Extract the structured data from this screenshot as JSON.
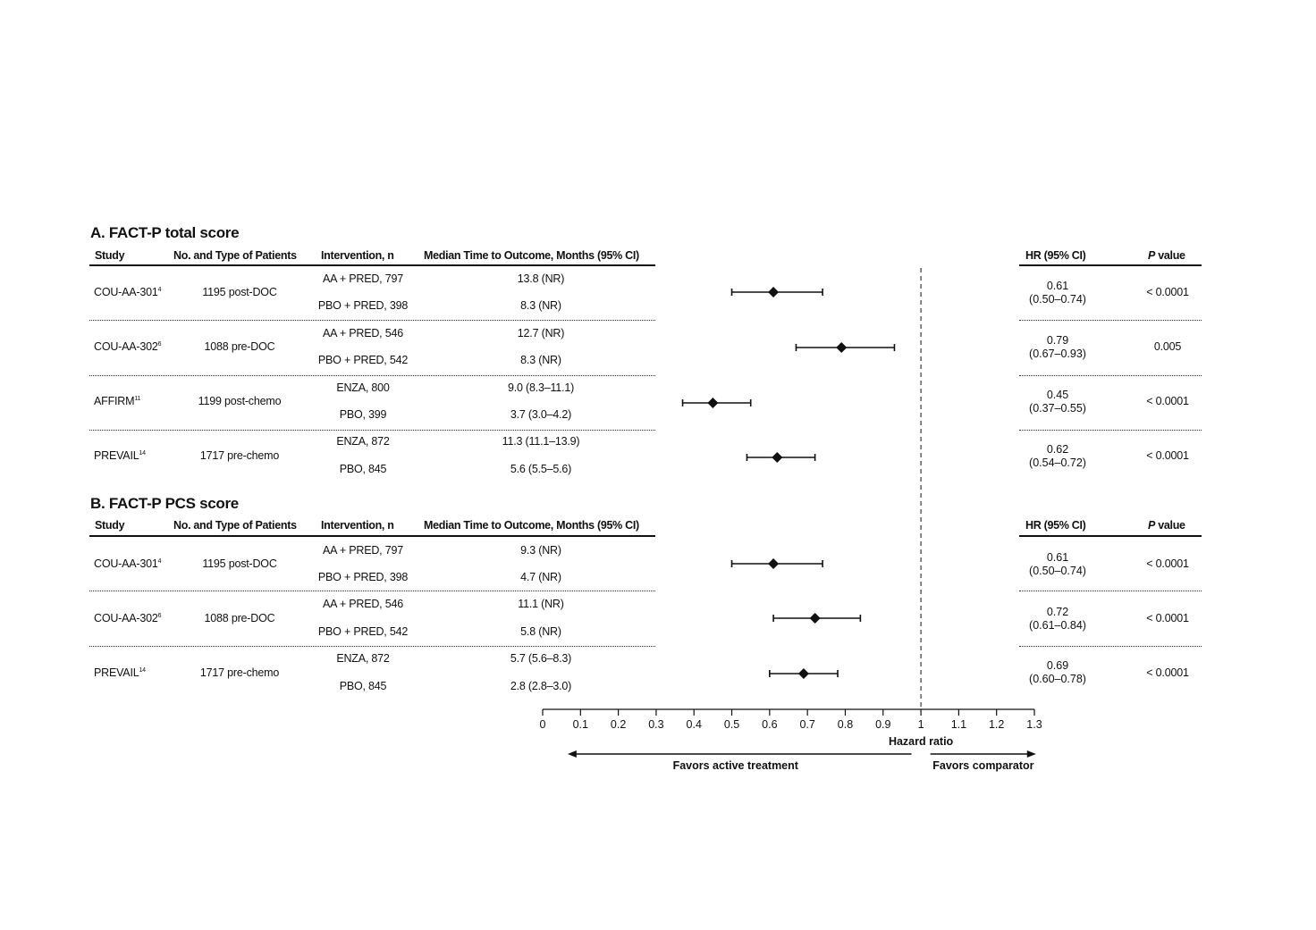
{
  "panels": [
    {
      "title": "A. FACT-P total score",
      "headers": {
        "study": "Study",
        "patients": "No. and Type of Patients",
        "intervention": "Intervention, n",
        "median": "Median Time to Outcome, Months (95% CI)",
        "hr": "HR (95% CI)",
        "p_italic": "P",
        "p_rest": " value"
      },
      "rows": [
        {
          "study": "COU-AA-301",
          "ref": "4",
          "patients": "1195 post-DOC",
          "arm1": "AA + PRED, 797",
          "med1": "13.8 (NR)",
          "arm2": "PBO + PRED, 398",
          "med2": "8.3 (NR)",
          "hr_value": "0.61",
          "hr_ci": "(0.50–0.74)",
          "p": "< 0.0001"
        },
        {
          "study": "COU-AA-302",
          "ref": "6",
          "patients": "1088 pre-DOC",
          "arm1": "AA + PRED, 546",
          "med1": "12.7 (NR)",
          "arm2": "PBO + PRED, 542",
          "med2": "8.3 (NR)",
          "hr_value": "0.79",
          "hr_ci": "(0.67–0.93)",
          "p": "0.005"
        },
        {
          "study": "AFFIRM",
          "ref": "11",
          "patients": "1199 post-chemo",
          "arm1": "ENZA, 800",
          "med1": "9.0 (8.3–11.1)",
          "arm2": "PBO, 399",
          "med2": "3.7 (3.0–4.2)",
          "hr_value": "0.45",
          "hr_ci": "(0.37–0.55)",
          "p": "< 0.0001"
        },
        {
          "study": "PREVAIL",
          "ref": "14",
          "patients": "1717 pre-chemo",
          "arm1": "ENZA, 872",
          "med1": "11.3 (11.1–13.9)",
          "arm2": "PBO, 845",
          "med2": "5.6 (5.5–5.6)",
          "hr_value": "0.62",
          "hr_ci": "(0.54–0.72)",
          "p": "< 0.0001"
        }
      ]
    },
    {
      "title": "B. FACT-P PCS score",
      "headers": {
        "study": "Study",
        "patients": "No. and Type of Patients",
        "intervention": "Intervention, n",
        "median": "Median Time to Outcome, Months (95% CI)",
        "hr": "HR (95% CI)",
        "p_italic": "P",
        "p_rest": " value"
      },
      "rows": [
        {
          "study": "COU-AA-301",
          "ref": "4",
          "patients": "1195 post-DOC",
          "arm1": "AA + PRED, 797",
          "med1": "9.3 (NR)",
          "arm2": "PBO + PRED, 398",
          "med2": "4.7 (NR)",
          "hr_value": "0.61",
          "hr_ci": "(0.50–0.74)",
          "p": "< 0.0001"
        },
        {
          "study": "COU-AA-302",
          "ref": "6",
          "patients": "1088 pre-DOC",
          "arm1": "AA + PRED, 546",
          "med1": "11.1 (NR)",
          "arm2": "PBO + PRED, 542",
          "med2": "5.8 (NR)",
          "hr_value": "0.72",
          "hr_ci": "(0.61–0.84)",
          "p": "< 0.0001"
        },
        {
          "study": "PREVAIL",
          "ref": "14",
          "patients": "1717 pre-chemo",
          "arm1": "ENZA, 872",
          "med1": "5.7 (5.6–8.3)",
          "arm2": "PBO, 845",
          "med2": "2.8 (2.8–3.0)",
          "hr_value": "0.69",
          "hr_ci": "(0.60–0.78)",
          "p": "< 0.0001"
        }
      ]
    }
  ],
  "chart_data": {
    "type": "forest",
    "xlabel": "Hazard ratio",
    "xlim": [
      0,
      1.3
    ],
    "ticks": [
      0,
      0.1,
      0.2,
      0.3,
      0.4,
      0.5,
      0.6,
      0.7,
      0.8,
      0.9,
      1,
      1.1,
      1.2,
      1.3
    ],
    "tick_labels": [
      "0",
      "0.1",
      "0.2",
      "0.3",
      "0.4",
      "0.5",
      "0.6",
      "0.7",
      "0.8",
      "0.9",
      "1",
      "1.1",
      "1.2",
      "1.3"
    ],
    "reference_line": 1,
    "left_arrow_label": "Favors active treatment",
    "right_arrow_label": "Favors comparator",
    "series": [
      {
        "name": "A. FACT-P total score",
        "points": [
          {
            "study": "COU-AA-301",
            "hr": 0.61,
            "lo": 0.5,
            "hi": 0.74
          },
          {
            "study": "COU-AA-302",
            "hr": 0.79,
            "lo": 0.67,
            "hi": 0.93
          },
          {
            "study": "AFFIRM",
            "hr": 0.45,
            "lo": 0.37,
            "hi": 0.55
          },
          {
            "study": "PREVAIL",
            "hr": 0.62,
            "lo": 0.54,
            "hi": 0.72
          }
        ]
      },
      {
        "name": "B. FACT-P PCS score",
        "points": [
          {
            "study": "COU-AA-301",
            "hr": 0.61,
            "lo": 0.5,
            "hi": 0.74
          },
          {
            "study": "COU-AA-302",
            "hr": 0.72,
            "lo": 0.61,
            "hi": 0.84
          },
          {
            "study": "PREVAIL",
            "hr": 0.69,
            "lo": 0.6,
            "hi": 0.78
          }
        ]
      }
    ],
    "colors": {
      "ink": "#111111"
    }
  }
}
